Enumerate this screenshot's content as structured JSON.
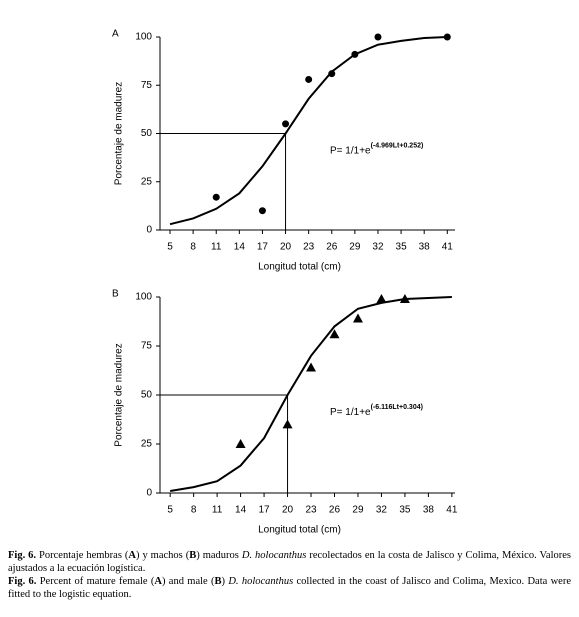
{
  "chart_data": [
    {
      "type": "scatter",
      "panel": "A",
      "ylabel": "Porcentaje de madurez",
      "xlabel": "Longitud total (cm)",
      "xlim": [
        3.7,
        42
      ],
      "ylim": [
        0,
        100
      ],
      "xticks": [
        5,
        8,
        11,
        14,
        17,
        20,
        23,
        26,
        29,
        32,
        35,
        38,
        41
      ],
      "yticks": [
        0,
        25,
        50,
        75,
        100
      ],
      "marker": "circle",
      "color": "#000000",
      "points": {
        "x": [
          11,
          17,
          20,
          23,
          26,
          29,
          32,
          41
        ],
        "values": [
          17,
          10,
          55,
          78,
          81,
          91,
          100,
          100
        ]
      },
      "fit": {
        "x": [
          5,
          8,
          11,
          14,
          17,
          20,
          23,
          26,
          29,
          32,
          35,
          38,
          41
        ],
        "values": [
          3,
          6,
          11,
          19,
          33,
          50,
          68,
          82,
          91,
          96,
          98,
          99.5,
          100
        ]
      },
      "reference": {
        "x": 20,
        "y": 50
      },
      "equation": "P= 1/1+e",
      "equation_exponent": "(-4.969Lt+0.252)"
    },
    {
      "type": "scatter",
      "panel": "B",
      "ylabel": "Porcentaje de madurez",
      "xlabel": "Longitud total (cm)",
      "xlim": [
        3.7,
        41.4
      ],
      "ylim": [
        0,
        100
      ],
      "xticks": [
        5,
        8,
        11,
        14,
        17,
        20,
        23,
        26,
        29,
        32,
        35,
        38,
        41
      ],
      "yticks": [
        0,
        25,
        50,
        75,
        100
      ],
      "marker": "triangle",
      "color": "#000000",
      "points": {
        "x": [
          14,
          20,
          23,
          26,
          29,
          32,
          35
        ],
        "values": [
          25,
          35,
          64,
          81,
          89,
          99,
          99
        ]
      },
      "fit": {
        "x": [
          5,
          8,
          11,
          14,
          17,
          20,
          23,
          26,
          29,
          32,
          35,
          38,
          41
        ],
        "values": [
          1,
          3,
          6,
          14,
          28,
          50,
          70,
          85,
          94,
          97,
          99,
          99.5,
          100
        ]
      },
      "reference": {
        "x": 20,
        "y": 50
      },
      "equation": "P= 1/1+e",
      "equation_exponent": "(-6.116Lt+0.304)"
    }
  ],
  "caption": [
    [
      {
        "text": "Fig. 6.",
        "bold": true
      },
      {
        "text": " Porcentaje hembras ("
      },
      {
        "text": "A",
        "bold": true
      },
      {
        "text": ") y machos ("
      },
      {
        "text": "B",
        "bold": true
      },
      {
        "text": ") maduros "
      },
      {
        "text": "D. holocanthus",
        "italic": true
      },
      {
        "text": " recolectados en la costa de Jalisco y Colima, México. Valores ajustados a la ecuación logística."
      }
    ],
    [
      {
        "text": "Fig. 6.",
        "bold": true
      },
      {
        "text": " Percent of mature female ("
      },
      {
        "text": "A",
        "bold": true
      },
      {
        "text": ") and male ("
      },
      {
        "text": "B",
        "bold": true
      },
      {
        "text": ") "
      },
      {
        "text": "D. holocanthus",
        "italic": true
      },
      {
        "text": " collected in the coast of Jalisco and Colima, Mexico. Data were fitted to the logistic equation."
      }
    ]
  ]
}
